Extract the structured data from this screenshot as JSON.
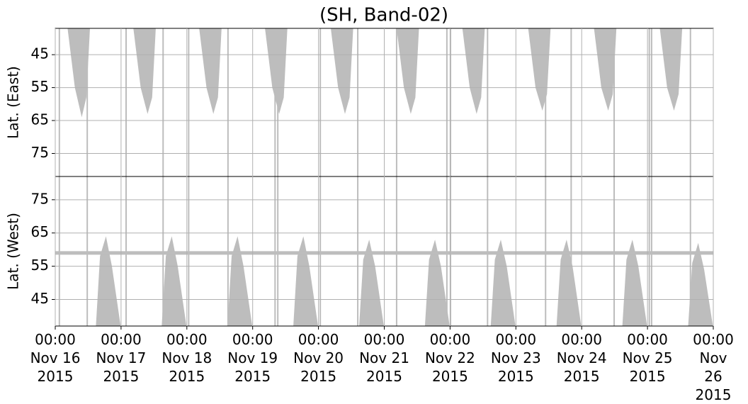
{
  "chart_data": {
    "type": "coverage",
    "title": "(SH, Band-02)",
    "xlim": [
      "2015-11-16 00:00",
      "2015-11-26 00:00"
    ],
    "xticks": [
      {
        "value": "2015-11-16 00:00",
        "label": "00:00\nNov 16\n2015"
      },
      {
        "value": "2015-11-17 00:00",
        "label": "00:00\nNov 17\n2015"
      },
      {
        "value": "2015-11-18 00:00",
        "label": "00:00\nNov 18\n2015"
      },
      {
        "value": "2015-11-19 00:00",
        "label": "00:00\nNov 19\n2015"
      },
      {
        "value": "2015-11-20 00:00",
        "label": "00:00\nNov 20\n2015"
      },
      {
        "value": "2015-11-21 00:00",
        "label": "00:00\nNov 21\n2015"
      },
      {
        "value": "2015-11-22 00:00",
        "label": "00:00\nNov 22\n2015"
      },
      {
        "value": "2015-11-23 00:00",
        "label": "00:00\nNov 23\n2015"
      },
      {
        "value": "2015-11-24 00:00",
        "label": "00:00\nNov 24\n2015"
      },
      {
        "value": "2015-11-25 00:00",
        "label": "00:00\nNov 25\n2015"
      },
      {
        "value": "2015-11-26 00:00",
        "label": "00:00\nNov 26\n2015"
      }
    ],
    "color": "#bdbdbd",
    "grid": true,
    "stripes": [
      "2015-11-16 01:30",
      "2015-11-16 11:40",
      "2015-11-17 01:50",
      "2015-11-17 15:20",
      "2015-11-18 00:40",
      "2015-11-18 15:00",
      "2015-11-19 08:10",
      "2015-11-19 09:10",
      "2015-11-20 00:40",
      "2015-11-20 14:20",
      "2015-11-21 04:30",
      "2015-11-21 22:50",
      "2015-11-22 00:10",
      "2015-11-22 13:40",
      "2015-11-23 10:50",
      "2015-11-23 20:10",
      "2015-11-24 11:50",
      "2015-11-25 00:40",
      "2015-11-25 01:30",
      "2015-11-25 15:40"
    ],
    "panels": [
      {
        "ylabel": "Lat. (East)",
        "ylim": [
          37,
          82
        ],
        "inverted": true,
        "yticks": [
          45,
          55,
          65,
          75
        ],
        "lobes": [
          {
            "x": [
              "2015-11-16 04:30",
              "2015-11-16 07:10",
              "2015-11-16 09:40",
              "2015-11-16 11:20",
              "2015-11-16 12:40"
            ],
            "values": [
              37,
              55,
              64,
              58,
              37
            ]
          },
          {
            "x": [
              "2015-11-17 04:30",
              "2015-11-17 07:10",
              "2015-11-17 09:40",
              "2015-11-17 11:20",
              "2015-11-17 12:40"
            ],
            "values": [
              37,
              55,
              63,
              58,
              37
            ]
          },
          {
            "x": [
              "2015-11-18 04:30",
              "2015-11-18 07:10",
              "2015-11-18 09:40",
              "2015-11-18 11:20",
              "2015-11-18 12:40"
            ],
            "values": [
              37,
              55,
              63,
              58,
              37
            ]
          },
          {
            "x": [
              "2015-11-19 04:30",
              "2015-11-19 07:10",
              "2015-11-19 09:40",
              "2015-11-19 11:20",
              "2015-11-19 12:40"
            ],
            "values": [
              37,
              55,
              63,
              58,
              37
            ]
          },
          {
            "x": [
              "2015-11-20 04:30",
              "2015-11-20 07:10",
              "2015-11-20 09:40",
              "2015-11-20 11:20",
              "2015-11-20 12:40"
            ],
            "values": [
              37,
              55,
              63,
              58,
              37
            ]
          },
          {
            "x": [
              "2015-11-21 04:30",
              "2015-11-21 07:10",
              "2015-11-21 09:40",
              "2015-11-21 11:20",
              "2015-11-21 12:40"
            ],
            "values": [
              37,
              55,
              63,
              58,
              37
            ]
          },
          {
            "x": [
              "2015-11-22 04:30",
              "2015-11-22 07:10",
              "2015-11-22 09:40",
              "2015-11-22 11:20",
              "2015-11-22 12:40"
            ],
            "values": [
              37,
              55,
              63,
              58,
              37
            ]
          },
          {
            "x": [
              "2015-11-23 04:30",
              "2015-11-23 07:10",
              "2015-11-23 09:40",
              "2015-11-23 11:20",
              "2015-11-23 12:40"
            ],
            "values": [
              37,
              55,
              62,
              57,
              37
            ]
          },
          {
            "x": [
              "2015-11-24 04:30",
              "2015-11-24 07:10",
              "2015-11-24 09:40",
              "2015-11-24 11:20",
              "2015-11-24 12:40"
            ],
            "values": [
              37,
              55,
              62,
              57,
              37
            ]
          },
          {
            "x": [
              "2015-11-25 04:30",
              "2015-11-25 07:10",
              "2015-11-25 09:40",
              "2015-11-25 11:20",
              "2015-11-25 12:40"
            ],
            "values": [
              37,
              55,
              62,
              57,
              37
            ]
          }
        ]
      },
      {
        "ylabel": "Lat. (West)",
        "ylim": [
          37,
          82
        ],
        "inverted": false,
        "yticks": [
          45,
          55,
          65,
          75
        ],
        "band": 59,
        "lobes": [
          {
            "x": [
              "2015-11-16 14:50",
              "2015-11-16 16:20",
              "2015-11-16 18:30",
              "2015-11-16 20:40",
              "2015-11-16 23:50"
            ],
            "values": [
              37,
              58,
              64,
              55,
              37
            ]
          },
          {
            "x": [
              "2015-11-17 14:50",
              "2015-11-17 16:20",
              "2015-11-17 18:30",
              "2015-11-17 20:40",
              "2015-11-17 23:50"
            ],
            "values": [
              37,
              58,
              64,
              55,
              37
            ]
          },
          {
            "x": [
              "2015-11-18 14:50",
              "2015-11-18 16:20",
              "2015-11-18 18:30",
              "2015-11-18 20:40",
              "2015-11-18 23:50"
            ],
            "values": [
              37,
              58,
              64,
              55,
              37
            ]
          },
          {
            "x": [
              "2015-11-19 14:50",
              "2015-11-19 16:20",
              "2015-11-19 18:30",
              "2015-11-19 20:40",
              "2015-11-19 23:50"
            ],
            "values": [
              37,
              58,
              64,
              55,
              37
            ]
          },
          {
            "x": [
              "2015-11-20 14:50",
              "2015-11-20 16:20",
              "2015-11-20 18:30",
              "2015-11-20 20:40",
              "2015-11-20 23:50"
            ],
            "values": [
              37,
              57,
              63,
              55,
              37
            ]
          },
          {
            "x": [
              "2015-11-21 14:50",
              "2015-11-21 16:20",
              "2015-11-21 18:30",
              "2015-11-21 20:40",
              "2015-11-21 23:50"
            ],
            "values": [
              37,
              57,
              63,
              55,
              37
            ]
          },
          {
            "x": [
              "2015-11-22 14:50",
              "2015-11-22 16:20",
              "2015-11-22 18:30",
              "2015-11-22 20:40",
              "2015-11-22 23:50"
            ],
            "values": [
              37,
              57,
              63,
              55,
              37
            ]
          },
          {
            "x": [
              "2015-11-23 14:50",
              "2015-11-23 16:20",
              "2015-11-23 18:30",
              "2015-11-23 20:40",
              "2015-11-23 23:50"
            ],
            "values": [
              37,
              57,
              63,
              55,
              37
            ]
          },
          {
            "x": [
              "2015-11-24 14:50",
              "2015-11-24 16:20",
              "2015-11-24 18:30",
              "2015-11-24 20:40",
              "2015-11-24 23:50"
            ],
            "values": [
              37,
              57,
              63,
              55,
              37
            ]
          },
          {
            "x": [
              "2015-11-25 14:50",
              "2015-11-25 16:20",
              "2015-11-25 18:30",
              "2015-11-25 20:40",
              "2015-11-25 23:50"
            ],
            "values": [
              37,
              56,
              62,
              54,
              37
            ]
          }
        ]
      }
    ]
  }
}
